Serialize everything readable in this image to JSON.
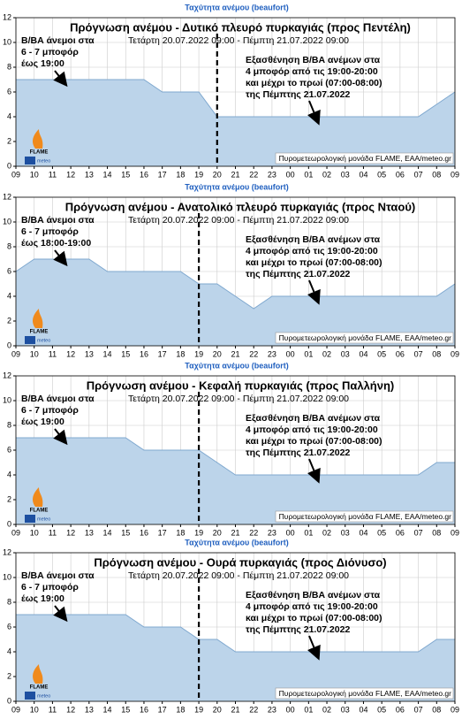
{
  "chart_data": [
    {
      "type": "area",
      "super_title": "Ταχύτητα ανέμου (beaufort)",
      "title": "Πρόγνωση ανέμου - Δυτικό πλευρό πυρκαγιάς (προς Πεντέλη)",
      "subtitle": "Τετάρτη 20.07.2022 09:00 - Πέμπτη 21.07.2022 09:00",
      "left_note": [
        "Β/ΒΑ άνεμοι στα",
        "6 - 7 μποφόρ",
        "έως 19:00"
      ],
      "right_note": [
        "Εξασθένηση Β/ΒΑ ανέμων στα",
        "4 μποφόρ από τις 19:00-20:00",
        "και μέχρι το πρωί (07:00-08:00)",
        "της Πέμπτης 21.07.2022"
      ],
      "credit": "Πυρομετεωρολογική μονάδα FLAME, ΕΑΑ/meteo.gr",
      "logo": [
        "FLAME",
        "meteo"
      ],
      "categories": [
        "09",
        "10",
        "11",
        "12",
        "13",
        "14",
        "15",
        "16",
        "17",
        "18",
        "19",
        "20",
        "21",
        "22",
        "23",
        "00",
        "01",
        "02",
        "03",
        "04",
        "05",
        "06",
        "07",
        "08",
        "09"
      ],
      "values": [
        7,
        7,
        7,
        7,
        7,
        7,
        7,
        7,
        6,
        6,
        6,
        4,
        4,
        4,
        4,
        4,
        4,
        4,
        4,
        4,
        4,
        4,
        4,
        5,
        6
      ],
      "vline": "20",
      "color": "#bcd4ea",
      "line_color": "#7fa8cf",
      "ylim": [
        0,
        12
      ],
      "yticks": [
        0,
        2,
        4,
        6,
        8,
        10,
        12
      ],
      "grid": true
    },
    {
      "type": "area",
      "super_title": "Ταχύτητα ανέμου (beaufort)",
      "title": "Πρόγνωση ανέμου - Ανατολικό πλευρό πυρκαγιάς (προς Νταού)",
      "subtitle": "Τετάρτη 20.07.2022 09:00 - Πέμπτη 21.07.2022 09:00",
      "left_note": [
        "Β/ΒΑ άνεμοι στα",
        "6 - 7 μποφόρ",
        "έως 18:00-19:00"
      ],
      "right_note": [
        "Εξασθένηση Β/ΒΑ ανέμων στα",
        "4 μποφόρ από τις 19:00-20:00",
        "και μέχρι το πρωί (07:00-08:00)",
        "της Πέμπτης 21.07.2022"
      ],
      "credit": "Πυρομετεωρολογική μονάδα FLAME, ΕΑΑ/meteo.gr",
      "logo": [
        "FLAME",
        "meteo"
      ],
      "categories": [
        "09",
        "10",
        "11",
        "12",
        "13",
        "14",
        "15",
        "16",
        "17",
        "18",
        "19",
        "20",
        "21",
        "22",
        "23",
        "00",
        "01",
        "02",
        "03",
        "04",
        "05",
        "06",
        "07",
        "08",
        "09"
      ],
      "values": [
        6,
        7,
        7,
        7,
        7,
        6,
        6,
        6,
        6,
        6,
        5,
        5,
        4,
        3,
        4,
        4,
        4,
        4,
        4,
        4,
        4,
        4,
        4,
        4,
        5
      ],
      "vline": "19",
      "color": "#bcd4ea",
      "line_color": "#7fa8cf",
      "ylim": [
        0,
        12
      ],
      "yticks": [
        0,
        2,
        4,
        6,
        8,
        10,
        12
      ],
      "grid": true
    },
    {
      "type": "area",
      "super_title": "Ταχύτητα ανέμου (beaufort)",
      "title": "Πρόγνωση ανέμου - Κεφαλή πυρκαγιάς (προς Παλλήνη)",
      "subtitle": "Τετάρτη 20.07.2022 09:00 - Πέμπτη 21.07.2022 09:00",
      "left_note": [
        "Β/ΒΑ άνεμοι στα",
        "6 - 7 μποφόρ",
        "έως 19:00"
      ],
      "right_note": [
        "Εξασθένηση Β/ΒΑ ανέμων στα",
        "4 μποφόρ από τις 19:00-20:00",
        "και μέχρι το πρωί (07:00-08:00)",
        "της Πέμπτης 21.07.2022"
      ],
      "credit": "Πυρομετεωρολογική μονάδα FLAME, ΕΑΑ/meteo.gr",
      "logo": [
        "FLAME",
        "meteo"
      ],
      "categories": [
        "09",
        "10",
        "11",
        "12",
        "13",
        "14",
        "15",
        "16",
        "17",
        "18",
        "19",
        "20",
        "21",
        "22",
        "23",
        "00",
        "01",
        "02",
        "03",
        "04",
        "05",
        "06",
        "07",
        "08",
        "09"
      ],
      "values": [
        7,
        7,
        7,
        7,
        7,
        7,
        7,
        6,
        6,
        6,
        6,
        5,
        4,
        4,
        4,
        4,
        4,
        4,
        4,
        4,
        4,
        4,
        4,
        5,
        5
      ],
      "vline": "19",
      "color": "#bcd4ea",
      "line_color": "#7fa8cf",
      "ylim": [
        0,
        12
      ],
      "yticks": [
        0,
        2,
        4,
        6,
        8,
        10,
        12
      ],
      "grid": true
    },
    {
      "type": "area",
      "super_title": "Ταχύτητα ανέμου (beaufort)",
      "title": "Πρόγνωση ανέμου - Ουρά πυρκαγιάς (προς Διόνυσο)",
      "subtitle": "Τετάρτη 20.07.2022 09:00 - Πέμπτη 21.07.2022 09:00",
      "left_note": [
        "Β/ΒΑ άνεμοι στα",
        "6 - 7 μποφόρ",
        "έως 19:00"
      ],
      "right_note": [
        "Εξασθένηση Β/ΒΑ ανέμων στα",
        "4 μποφόρ από τις 19:00-20:00",
        "και μέχρι το πρωί (07:00-08:00)",
        "της Πέμπτης 21.07.2022"
      ],
      "credit": "Πυρομετεωρολογική μονάδα FLAME, ΕΑΑ/meteo.gr",
      "logo": [
        "FLAME",
        "meteo"
      ],
      "categories": [
        "09",
        "10",
        "11",
        "12",
        "13",
        "14",
        "15",
        "16",
        "17",
        "18",
        "19",
        "20",
        "21",
        "22",
        "23",
        "00",
        "01",
        "02",
        "03",
        "04",
        "05",
        "06",
        "07",
        "08",
        "09"
      ],
      "values": [
        7,
        7,
        7,
        7,
        7,
        7,
        7,
        6,
        6,
        6,
        5,
        5,
        4,
        4,
        4,
        4,
        4,
        4,
        4,
        4,
        4,
        4,
        4,
        5,
        5
      ],
      "vline": "19",
      "color": "#bcd4ea",
      "line_color": "#7fa8cf",
      "ylim": [
        0,
        12
      ],
      "yticks": [
        0,
        2,
        4,
        6,
        8,
        10,
        12
      ],
      "grid": true
    }
  ]
}
